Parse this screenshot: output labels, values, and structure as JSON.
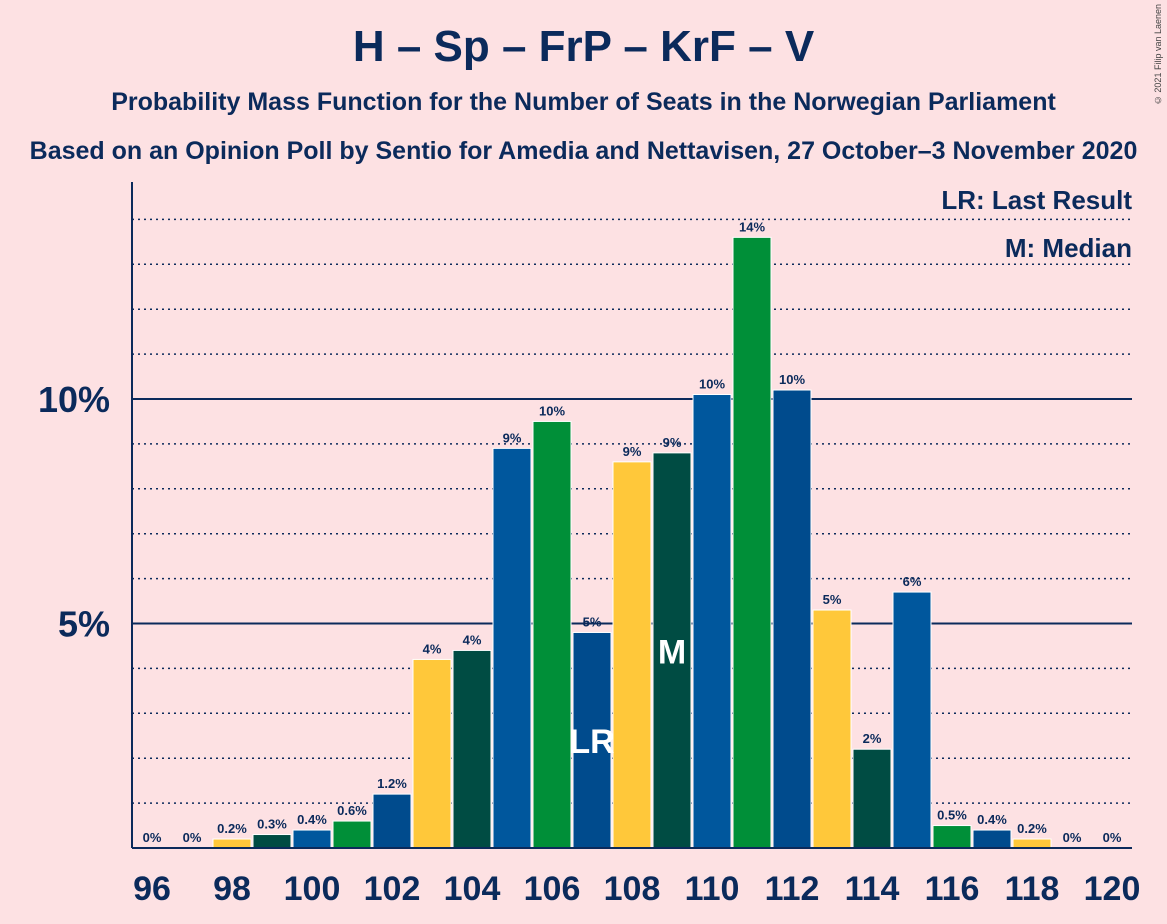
{
  "title": "H – Sp – FrP – KrF – V",
  "subtitle": "Probability Mass Function for the Number of Seats in the Norwegian Parliament",
  "subtitle2": "Based on an Opinion Poll by Sentio for Amedia and Nettavisen, 27 October–3 November 2020",
  "copyright": "© 2021 Filip van Laenen",
  "legend": {
    "last_result": "LR: Last Result",
    "median": "M: Median"
  },
  "colors": {
    "h": "#00579d",
    "sp": "#008f38",
    "frp": "#ffc83a",
    "krf": "#004c43",
    "lr_bar": "#004b8d",
    "axis": "#0b2a5b"
  },
  "chart_data": {
    "type": "bar",
    "categories": [
      96,
      97,
      98,
      99,
      100,
      101,
      102,
      103,
      104,
      105,
      106,
      107,
      108,
      109,
      110,
      111,
      112,
      113,
      114,
      115,
      116,
      117,
      118,
      119,
      120
    ],
    "values": [
      0,
      0,
      0.2,
      0.3,
      0.4,
      0.6,
      1.2,
      4.2,
      4.4,
      8.9,
      9.5,
      4.8,
      8.6,
      8.8,
      10.1,
      13.6,
      10.2,
      5.3,
      2.2,
      5.7,
      0.5,
      0.4,
      0.2,
      0,
      0
    ],
    "labels": [
      "0%",
      "0%",
      "0.2%",
      "0.3%",
      "0.4%",
      "0.6%",
      "1.2%",
      "4%",
      "4%",
      "9%",
      "10%",
      "5%",
      "9%",
      "9%",
      "10%",
      "14%",
      "10%",
      "5%",
      "2%",
      "6%",
      "0.5%",
      "0.4%",
      "0.2%",
      "0%",
      "0%"
    ],
    "bar_colors": [
      "#00579d",
      "#008f38",
      "#ffc83a",
      "#004c43",
      "#00579d",
      "#008f38",
      "#004b8d",
      "#ffc83a",
      "#004c43",
      "#00579d",
      "#008f38",
      "#004b8d",
      "#ffc83a",
      "#004c43",
      "#00579d",
      "#008f38",
      "#004b8d",
      "#ffc83a",
      "#004c43",
      "#00579d",
      "#008f38",
      "#004b8d",
      "#ffc83a",
      "#004c43",
      "#00579d"
    ],
    "xtick_labels": [
      "96",
      "98",
      "100",
      "102",
      "104",
      "106",
      "108",
      "110",
      "112",
      "114",
      "116",
      "118",
      "120"
    ],
    "ytick_labels": [
      "5%",
      "10%"
    ],
    "yticks": [
      5,
      10
    ],
    "ylim": [
      0,
      14.8
    ],
    "last_result": {
      "seat": 107,
      "label": "LR"
    },
    "median": {
      "seat": 109,
      "label": "M"
    },
    "grid": true,
    "legend_position": "top-right"
  }
}
